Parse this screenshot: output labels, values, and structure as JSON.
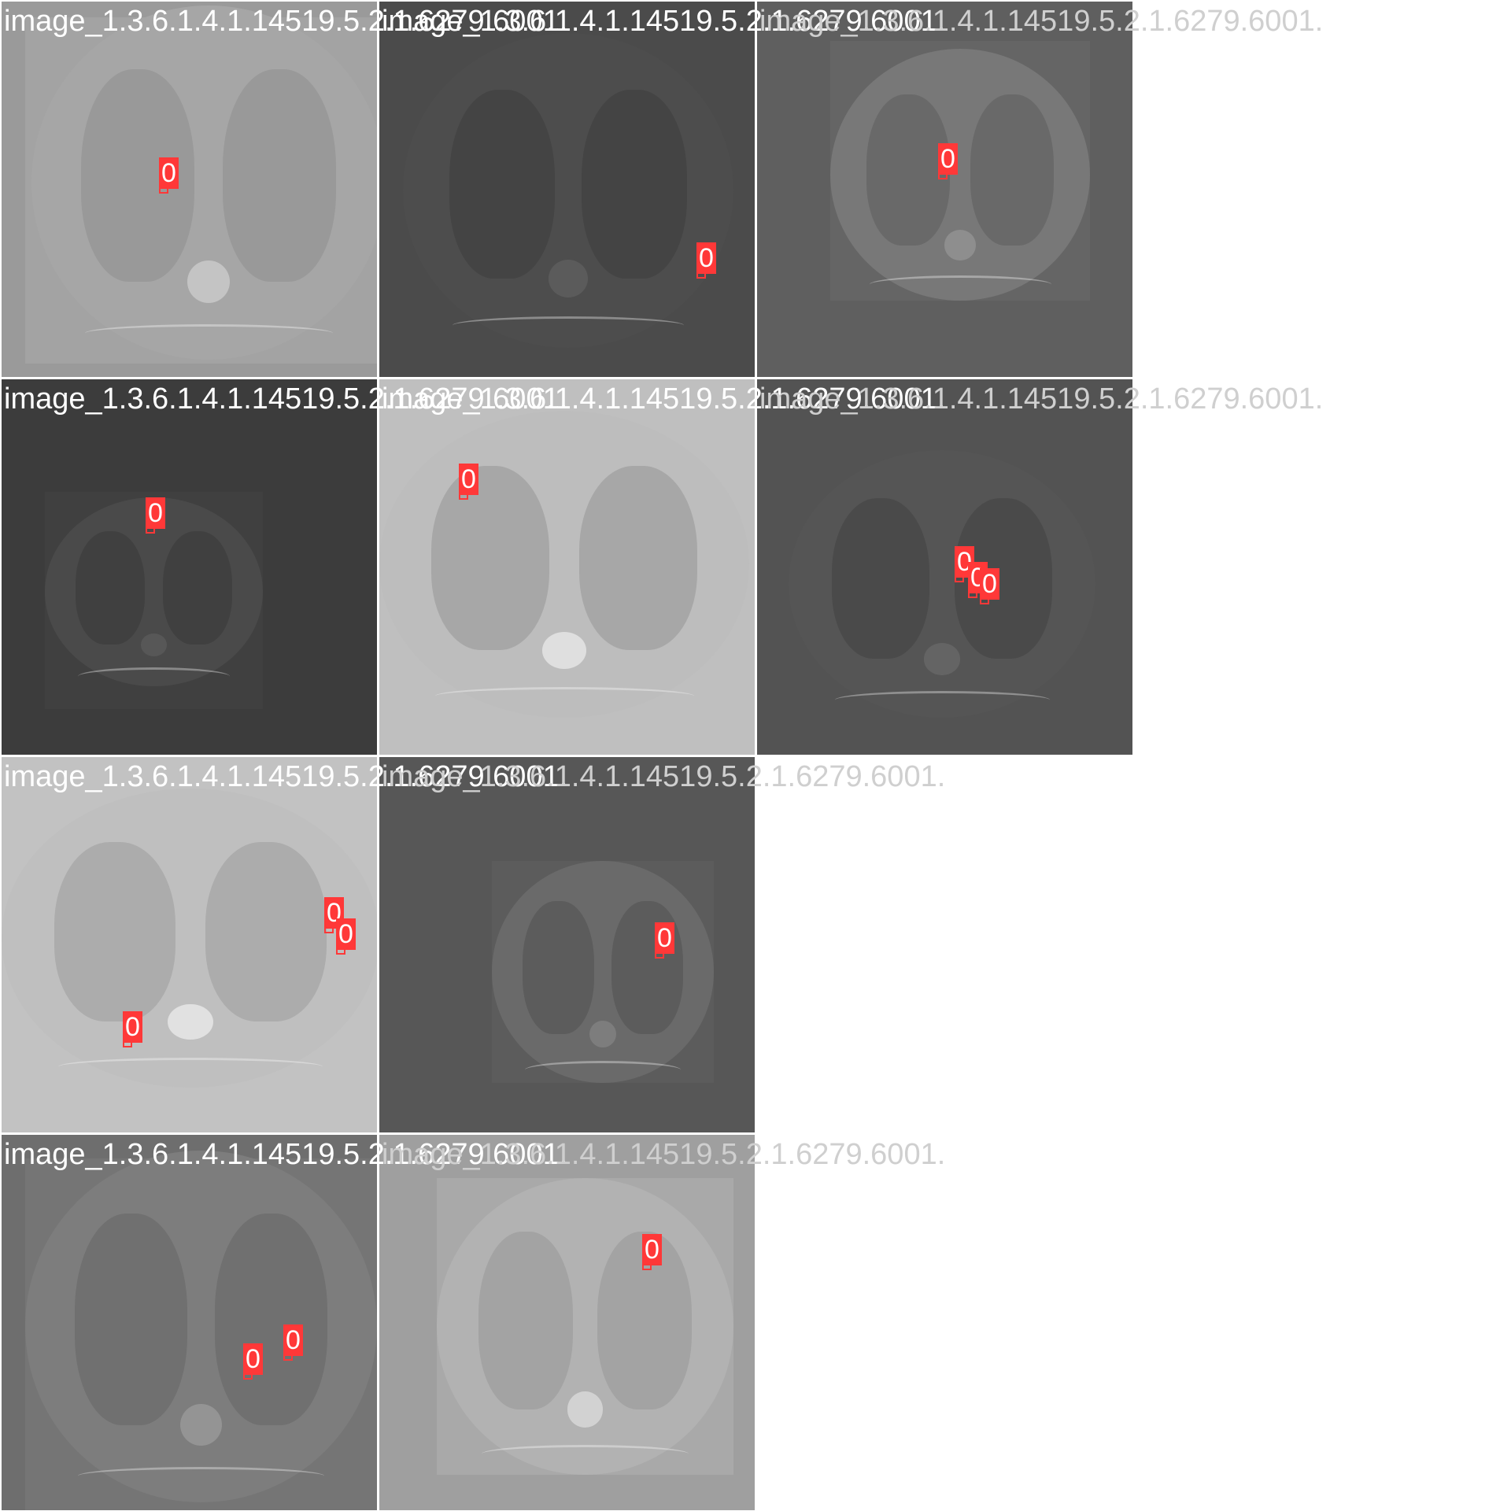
{
  "box_color": "#ff3838",
  "tiles": [
    {
      "name": "image_1.3.6.1.4.1.14519.5.2.1.6279.6001.",
      "bg": "#9a9a9a",
      "body": "#a6a6a6",
      "lung": "#999999",
      "detections": [
        {
          "label": "0"
        }
      ]
    },
    {
      "name": "image_1.3.6.1.4.1.14519.5.2.1.6279.6001.",
      "bg": "#474747",
      "body": "#4d4d4d",
      "lung": "#444444",
      "detections": [
        {
          "label": "0"
        }
      ]
    },
    {
      "name": "image_1.3.6.1.4.1.14519.5.2.1.6279.6001.",
      "bg": "#5f5f5f",
      "body": "#787878",
      "lung": "#696969",
      "detections": [
        {
          "label": "0"
        }
      ]
    },
    {
      "name": "image_1.3.6.1.4.1.14519.5.2.1.6279.6001.",
      "bg": "#3c3c3c",
      "body": "#4a4a4a",
      "lung": "#404040",
      "detections": [
        {
          "label": "0"
        }
      ]
    },
    {
      "name": "image_1.3.6.1.4.1.14519.5.2.1.6279.6001.",
      "bg": "#b4b4b4",
      "body": "#bdbdbd",
      "lung": "#a7a7a7",
      "detections": [
        {
          "label": "0"
        }
      ]
    },
    {
      "name": "image_1.3.6.1.4.1.14519.5.2.1.6279.6001.",
      "bg": "#4e4e4e",
      "body": "#555555",
      "lung": "#4a4a4a",
      "detections": [
        {
          "label": "0"
        },
        {
          "label": "0"
        },
        {
          "label": "0"
        }
      ]
    },
    {
      "name": "image_1.3.6.1.4.1.14519.5.2.1.6279.6001.",
      "bg": "#b7b7b7",
      "body": "#bfbfbf",
      "lung": "#acacac",
      "detections": [
        {
          "label": "0"
        },
        {
          "label": "0"
        },
        {
          "label": "0"
        }
      ]
    },
    {
      "name": "image_1.3.6.1.4.1.14519.5.2.1.6279.6001.",
      "bg": "#575757",
      "body": "#6a6a6a",
      "lung": "#5c5c5c",
      "detections": [
        {
          "label": "0"
        }
      ]
    },
    {
      "name": "image_1.3.6.1.4.1.14519.5.2.1.6279.6001.",
      "bg": "#6e6e6e",
      "body": "#7d7d7d",
      "lung": "#707070",
      "detections": [
        {
          "label": "0"
        },
        {
          "label": "0"
        }
      ]
    },
    {
      "name": "image_1.3.6.1.4.1.14519.5.2.1.6279.6001.",
      "bg": "#9f9f9f",
      "body": "#b2b2b2",
      "lung": "#a3a3a3",
      "detections": [
        {
          "label": "0"
        }
      ]
    }
  ]
}
